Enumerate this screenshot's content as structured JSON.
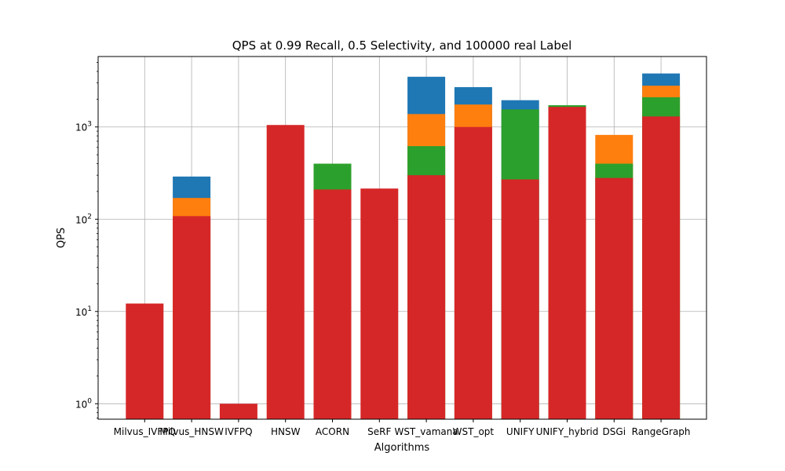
{
  "chart_data": {
    "type": "bar",
    "title": "QPS at 0.99 Recall, 0.5 Selectivity, and 100000 real Label",
    "xlabel": "Algorithms",
    "ylabel": "QPS",
    "yscale": "log",
    "ylim": [
      0.68,
      5800
    ],
    "grid": true,
    "categories": [
      "Milvus_IVFPQ",
      "Milvus_HNSW",
      "IVFPQ",
      "HNSW",
      "ACORN",
      "SeRF",
      "WST_vamana",
      "WST_opt",
      "UNIFY",
      "UNIFY_hybrid",
      "DSGi",
      "RangeGraph"
    ],
    "series": [
      {
        "color": "#1f77b4",
        "values": [
          null,
          290,
          null,
          null,
          null,
          null,
          3500,
          2700,
          1950,
          null,
          null,
          3800
        ]
      },
      {
        "color": "#ff7f0e",
        "values": [
          null,
          170,
          null,
          null,
          null,
          null,
          1380,
          1750,
          null,
          null,
          820,
          2800
        ]
      },
      {
        "color": "#2ca02c",
        "values": [
          null,
          null,
          null,
          null,
          400,
          null,
          620,
          null,
          1550,
          1720,
          400,
          2100
        ]
      },
      {
        "color": "#d62728",
        "values": [
          12.2,
          108,
          1.0,
          1050,
          210,
          215,
          300,
          1000,
          270,
          1650,
          280,
          1300
        ]
      }
    ],
    "yticks": [
      {
        "value": 1,
        "base": "10",
        "exp": "0"
      },
      {
        "value": 10,
        "base": "10",
        "exp": "1"
      },
      {
        "value": 100,
        "base": "10",
        "exp": "2"
      },
      {
        "value": 1000,
        "base": "10",
        "exp": "3"
      }
    ]
  }
}
